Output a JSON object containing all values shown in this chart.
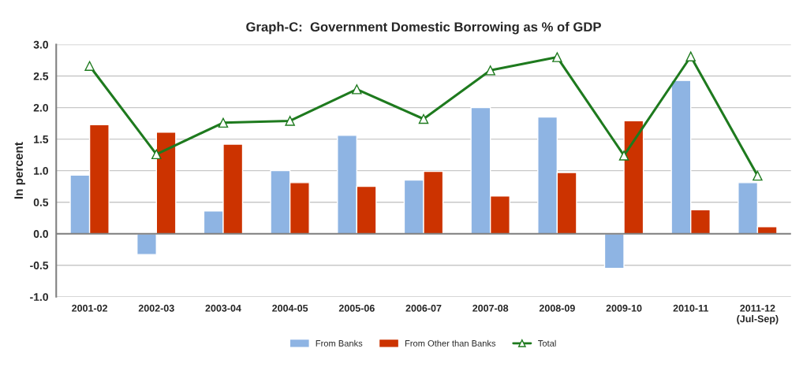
{
  "chart_data": {
    "type": "bar",
    "title": "Graph-C:  Government Domestic Borrowing as % of GDP",
    "ylabel": "In percent",
    "categories": [
      "2001-02",
      "2002-03",
      "2003-04",
      "2004-05",
      "2005-06",
      "2006-07",
      "2007-08",
      "2008-09",
      "2009-10",
      "2010-11",
      "2011-12\n(Jul-Sep)"
    ],
    "series": [
      {
        "name": "From Banks",
        "color": "#8eb4e3",
        "values": [
          0.93,
          -0.33,
          0.36,
          1.0,
          1.56,
          0.85,
          2.0,
          1.85,
          -0.55,
          2.43,
          0.81
        ]
      },
      {
        "name": "From Other than Banks",
        "color": "#cc3300",
        "values": [
          1.73,
          1.61,
          1.42,
          0.81,
          0.75,
          0.99,
          0.6,
          0.97,
          1.79,
          0.38,
          0.11
        ]
      },
      {
        "name": "Total",
        "type": "line",
        "color": "#1e7a1e",
        "marker": "triangle",
        "values": [
          2.66,
          1.26,
          1.76,
          1.79,
          2.29,
          1.82,
          2.59,
          2.8,
          1.24,
          2.81,
          0.92
        ]
      }
    ],
    "ylim": [
      -1.0,
      3.0
    ],
    "yticks": [
      {
        "value": -1.0,
        "label": "-1.0"
      },
      {
        "value": -0.5,
        "label": "-0.5"
      },
      {
        "value": 0.0,
        "label": "0.0"
      },
      {
        "value": 0.5,
        "label": "0.5"
      },
      {
        "value": 1.0,
        "label": "1.0"
      },
      {
        "value": 1.5,
        "label": "1.5"
      },
      {
        "value": 2.0,
        "label": "2.0"
      },
      {
        "value": 2.5,
        "label": "2.5"
      },
      {
        "value": 3.0,
        "label": "3.0"
      }
    ],
    "grid": "y",
    "legend": "bottom"
  }
}
